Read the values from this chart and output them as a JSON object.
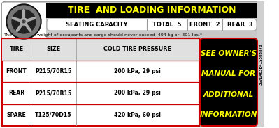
{
  "title": "TIRE  AND LOADING INFORMATION",
  "seating_label": "SEATING CAPACITY",
  "total_label": "TOTAL  5",
  "front_label": "FRONT  2",
  "rear_label": "REAR  3",
  "combined_weight_text": "The combined weight of occupants and cargo should never exceed  404 kg or  891 lbs.*",
  "table_headers": [
    "TIRE",
    "SIZE",
    "COLD TIRE PRESSURE"
  ],
  "table_rows": [
    [
      "FRONT",
      "P215/70R15",
      "200 kPa, 29 psi"
    ],
    [
      "REAR",
      "P215/70R15",
      "200 kPa, 29 psi"
    ],
    [
      "SPARE",
      "T125/70D15",
      "420 kPa, 60 psi"
    ]
  ],
  "side_note_lines": [
    "SEE OWNER'S",
    "MANUAL FOR",
    "ADDITIONAL",
    "INFORMATION"
  ],
  "serial": "3G7DA03E41S503870",
  "sticker_bg": "#c8c8c8",
  "header_bg": "#000000",
  "header_text_color": "#ffff00",
  "table_bg": "#ffffff",
  "table_border_color": "#cc0000",
  "table_line_color": "#aaaaaa",
  "header_row_bg": "#e0e0e0",
  "side_note_bg": "#000000",
  "side_note_text_color": "#ffff00",
  "serial_strip_bg": "#d8d8d8",
  "outer_border_color": "#999999",
  "seating_bg": "#ffffff"
}
